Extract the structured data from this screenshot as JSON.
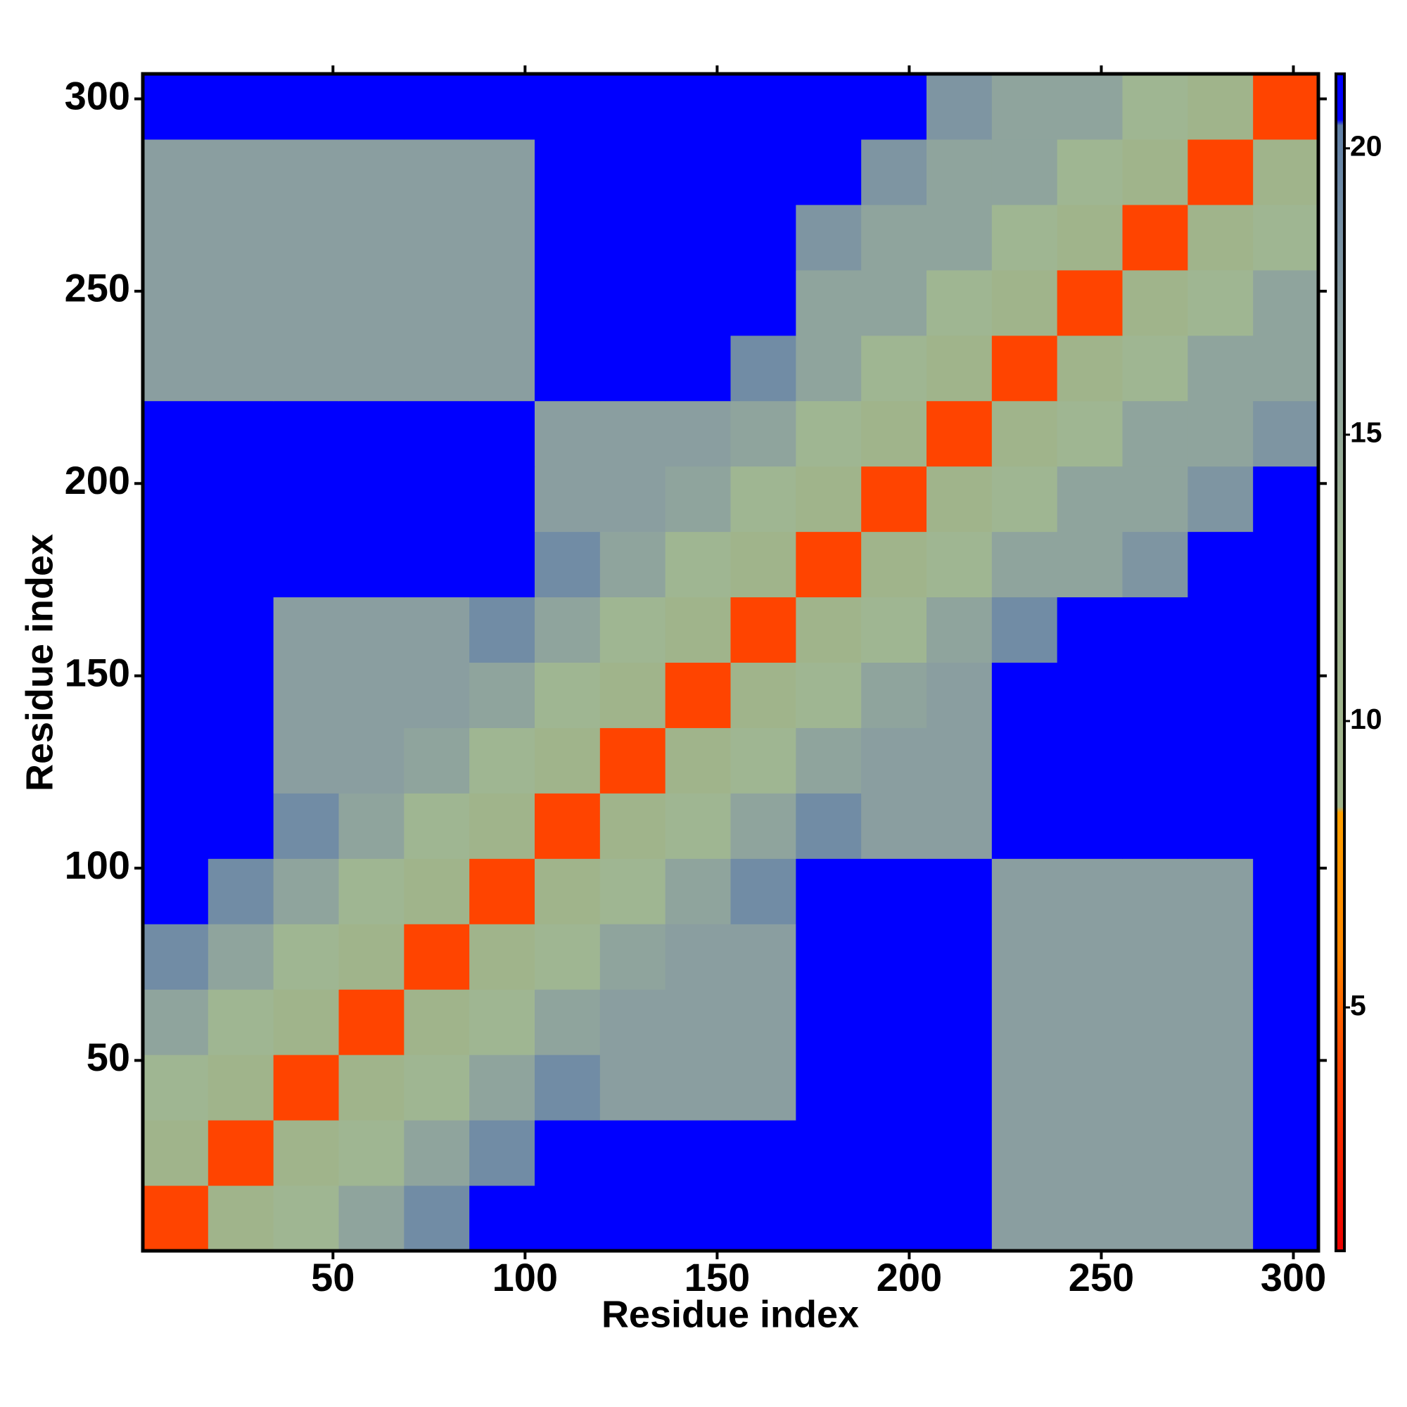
{
  "chart_data": {
    "type": "heatmap",
    "xlabel": "Residue index",
    "ylabel": "Residue index",
    "xbins": [
      0.5,
      17.5,
      34.5,
      51.5,
      68.5,
      85.5,
      102.5,
      119.5,
      136.5,
      153.5,
      170.5,
      187.5,
      204.5,
      221.5,
      238.5,
      255.5,
      272.5,
      289.5,
      306.5
    ],
    "ybins": [
      0.5,
      17.5,
      34.5,
      51.5,
      68.5,
      85.5,
      102.5,
      119.5,
      136.5,
      153.5,
      170.5,
      187.5,
      204.5,
      221.5,
      238.5,
      255.5,
      272.5,
      289.5,
      306.5
    ],
    "z": [
      [
        4,
        9,
        13,
        16,
        19,
        24,
        24,
        24,
        24,
        24,
        24,
        24,
        24,
        17,
        17,
        17,
        17,
        24
      ],
      [
        9,
        4,
        9,
        13,
        16,
        19,
        24,
        24,
        24,
        24,
        24,
        24,
        24,
        17,
        17,
        17,
        17,
        24
      ],
      [
        13,
        9,
        4,
        9,
        13,
        16,
        19,
        17,
        17,
        17,
        24,
        24,
        24,
        17,
        17,
        17,
        17,
        24
      ],
      [
        16,
        13,
        9,
        4,
        9,
        13,
        16,
        17,
        17,
        17,
        24,
        24,
        24,
        17,
        17,
        17,
        17,
        24
      ],
      [
        19,
        16,
        13,
        9,
        4,
        9,
        13,
        16,
        17,
        17,
        24,
        24,
        24,
        17,
        17,
        17,
        17,
        24
      ],
      [
        24,
        19,
        16,
        13,
        9,
        4,
        9,
        13,
        16,
        19,
        24,
        24,
        24,
        17,
        17,
        17,
        17,
        24
      ],
      [
        24,
        24,
        19,
        16,
        13,
        9,
        4,
        9,
        13,
        16,
        19,
        17,
        17,
        24,
        24,
        24,
        24,
        24
      ],
      [
        24,
        24,
        17,
        17,
        16,
        13,
        9,
        4,
        9,
        13,
        16,
        17,
        17,
        24,
        24,
        24,
        24,
        24
      ],
      [
        24,
        24,
        17,
        17,
        17,
        16,
        13,
        9,
        4,
        9,
        13,
        16,
        17,
        24,
        24,
        24,
        24,
        24
      ],
      [
        24,
        24,
        17,
        17,
        17,
        19,
        16,
        13,
        9,
        4,
        9,
        13,
        16,
        19,
        24,
        24,
        24,
        24
      ],
      [
        24,
        24,
        24,
        24,
        24,
        24,
        19,
        16,
        13,
        9,
        4,
        9,
        13,
        16,
        16,
        18,
        24,
        24
      ],
      [
        24,
        24,
        24,
        24,
        24,
        24,
        17,
        17,
        16,
        13,
        9,
        4,
        9,
        13,
        16,
        16,
        18,
        24
      ],
      [
        24,
        24,
        24,
        24,
        24,
        24,
        17,
        17,
        17,
        16,
        13,
        9,
        4,
        9,
        13,
        16,
        16,
        18
      ],
      [
        17,
        17,
        17,
        17,
        17,
        17,
        24,
        24,
        24,
        19,
        16,
        13,
        9,
        4,
        9,
        13,
        16,
        16
      ],
      [
        17,
        17,
        17,
        17,
        17,
        17,
        24,
        24,
        24,
        24,
        16,
        16,
        13,
        9,
        4,
        9,
        13,
        16
      ],
      [
        17,
        17,
        17,
        17,
        17,
        17,
        24,
        24,
        24,
        24,
        18,
        16,
        16,
        13,
        9,
        4,
        9,
        13
      ],
      [
        17,
        17,
        17,
        17,
        17,
        17,
        24,
        24,
        24,
        24,
        24,
        18,
        16,
        16,
        13,
        9,
        4,
        9
      ],
      [
        24,
        24,
        24,
        24,
        24,
        24,
        24,
        24,
        24,
        24,
        24,
        24,
        18,
        16,
        16,
        13,
        9,
        4
      ]
    ],
    "xlim": [
      0.5,
      306.5
    ],
    "ylim": [
      0.5,
      306.5
    ],
    "xticks": [
      50,
      100,
      150,
      200,
      250,
      300
    ],
    "yticks": [
      50,
      100,
      150,
      200,
      250,
      300
    ],
    "clim": [
      0.75,
      21.3
    ],
    "cticks": [
      5,
      10,
      15,
      20
    ],
    "colorscale": [
      [
        0.75,
        "#ee0000"
      ],
      [
        4,
        "#ff4400"
      ],
      [
        6,
        "#ff8800"
      ],
      [
        8.4,
        "#ffa000"
      ],
      [
        8.5,
        "#a0b48a"
      ],
      [
        13,
        "#9fb692"
      ],
      [
        17,
        "#8a9ea0"
      ],
      [
        20.4,
        "#6080a8"
      ],
      [
        20.5,
        "#0000ff"
      ]
    ]
  }
}
